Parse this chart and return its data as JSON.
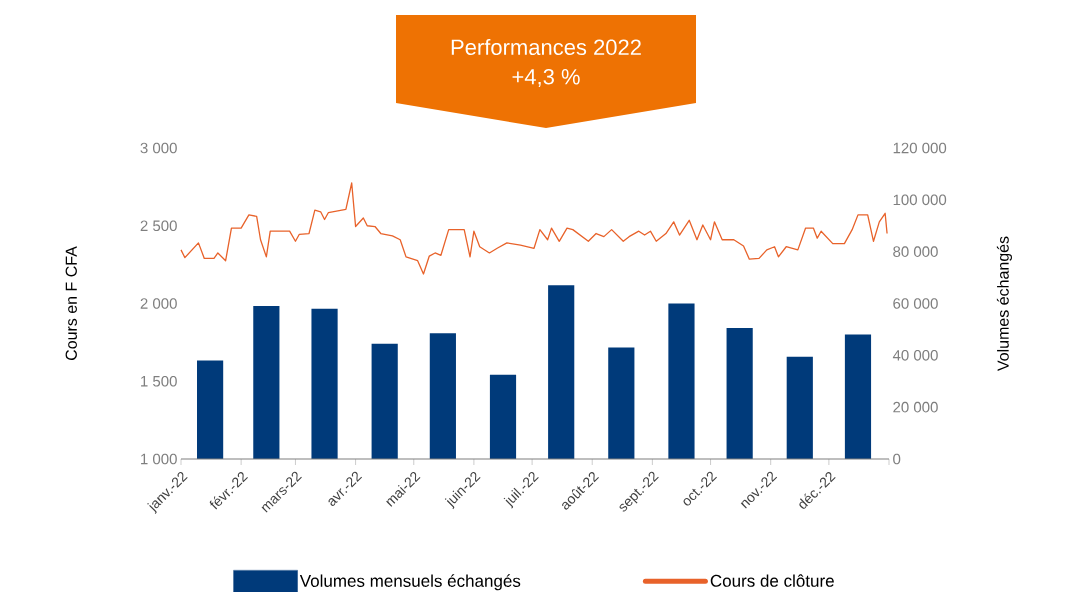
{
  "chart_data": {
    "type": "bar",
    "title": "Performances 2022",
    "subtitle": "+4,3 %",
    "ylabel": "Cours en F CFA",
    "y2label": "Volumes échangés",
    "legend": "bottom",
    "xlim": [
      "2022-01-01",
      "2023-01-01"
    ],
    "xticks": [
      {
        "value": "2022-01-01",
        "label": "janv.-22"
      },
      {
        "value": "2022-02-01",
        "label": "févr.-22"
      },
      {
        "value": "2022-03-01",
        "label": "mars-22"
      },
      {
        "value": "2022-04-01",
        "label": "avr.-22"
      },
      {
        "value": "2022-05-01",
        "label": "mai-22"
      },
      {
        "value": "2022-06-01",
        "label": "juin-22"
      },
      {
        "value": "2022-07-01",
        "label": "juil.-22"
      },
      {
        "value": "2022-08-01",
        "label": "août-22"
      },
      {
        "value": "2022-09-01",
        "label": "sept.-22"
      },
      {
        "value": "2022-10-01",
        "label": "oct.-22"
      },
      {
        "value": "2022-11-01",
        "label": "nov.-22"
      },
      {
        "value": "2022-12-01",
        "label": "déc.-22"
      },
      {
        "value": "2023-01-01",
        "label": null
      }
    ],
    "ylim": [
      1000,
      3000
    ],
    "yticks": [
      {
        "value": 1000,
        "label": "1 000"
      },
      {
        "value": 1500,
        "label": "1 500"
      },
      {
        "value": 2000,
        "label": "2 000"
      },
      {
        "value": 2500,
        "label": "2 500"
      },
      {
        "value": 3000,
        "label": "3 000"
      }
    ],
    "y2lim": [
      0,
      120000
    ],
    "y2ticks": [
      0,
      {
        "value": 20000,
        "label": "20 000"
      },
      {
        "value": 40000,
        "label": "40 000"
      },
      {
        "value": 60000,
        "label": "60 000"
      },
      {
        "value": 80000,
        "label": "80 000"
      },
      {
        "value": 100000,
        "label": "100 000"
      },
      {
        "value": 120000,
        "label": "120 000"
      }
    ],
    "series": [
      {
        "name": "Volumes mensuels échangés",
        "axis": "y2",
        "color": "#003a7a",
        "x": [
          "2022-01-16",
          "2022-02-14",
          "2022-03-16",
          "2022-04-16",
          "2022-05-16",
          "2022-06-16",
          "2022-07-16",
          "2022-08-16",
          "2022-09-16",
          "2022-10-16",
          "2022-11-16",
          "2022-12-16"
        ],
        "values": [
          38000,
          59000,
          58000,
          44500,
          48500,
          32500,
          67000,
          43000,
          60000,
          50500,
          39500,
          48000
        ]
      },
      {
        "name": "Cours  de clôture",
        "type": "line",
        "axis": "y",
        "color": "#e8622a",
        "x": [
          "2022-01-01",
          "2022-01-03",
          "2022-01-10",
          "2022-01-13",
          "2022-01-18",
          "2022-01-20",
          "2022-01-24",
          "2022-01-27",
          "2022-02-01",
          "2022-02-05",
          "2022-02-09",
          "2022-02-11",
          "2022-02-14",
          "2022-02-16",
          "2022-02-26",
          "2022-03-01",
          "2022-03-03",
          "2022-03-08",
          "2022-03-11",
          "2022-03-14",
          "2022-03-16",
          "2022-03-18",
          "2022-03-27",
          "2022-03-30",
          "2022-04-01",
          "2022-04-05",
          "2022-04-07",
          "2022-04-11",
          "2022-04-14",
          "2022-04-20",
          "2022-04-24",
          "2022-04-27",
          "2022-05-03",
          "2022-05-06",
          "2022-05-09",
          "2022-05-12",
          "2022-05-15",
          "2022-05-19",
          "2022-05-27",
          "2022-05-30",
          "2022-06-01",
          "2022-06-04",
          "2022-06-09",
          "2022-06-13",
          "2022-06-18",
          "2022-06-25",
          "2022-07-02",
          "2022-07-05",
          "2022-07-09",
          "2022-07-11",
          "2022-07-15",
          "2022-07-19",
          "2022-07-22",
          "2022-07-30",
          "2022-08-03",
          "2022-08-07",
          "2022-08-11",
          "2022-08-17",
          "2022-08-20",
          "2022-08-25",
          "2022-08-28",
          "2022-08-31",
          "2022-09-03",
          "2022-09-08",
          "2022-09-12",
          "2022-09-15",
          "2022-09-20",
          "2022-09-24",
          "2022-09-27",
          "2022-10-01",
          "2022-10-03",
          "2022-10-07",
          "2022-10-13",
          "2022-10-18",
          "2022-10-21",
          "2022-10-26",
          "2022-10-30",
          "2022-11-03",
          "2022-11-05",
          "2022-11-09",
          "2022-11-15",
          "2022-11-19",
          "2022-11-23",
          "2022-11-25",
          "2022-11-27",
          "2022-12-03",
          "2022-12-09",
          "2022-12-13",
          "2022-12-16",
          "2022-12-21",
          "2022-12-24",
          "2022-12-27",
          "2022-12-30",
          "2022-12-31"
        ],
        "values": [
          2345,
          2295,
          2390,
          2290,
          2290,
          2325,
          2275,
          2485,
          2485,
          2570,
          2560,
          2410,
          2300,
          2465,
          2465,
          2400,
          2445,
          2450,
          2600,
          2590,
          2540,
          2585,
          2605,
          2775,
          2495,
          2550,
          2500,
          2495,
          2450,
          2435,
          2410,
          2300,
          2275,
          2190,
          2305,
          2325,
          2310,
          2475,
          2475,
          2300,
          2465,
          2365,
          2325,
          2355,
          2390,
          2375,
          2355,
          2475,
          2410,
          2485,
          2400,
          2485,
          2475,
          2400,
          2450,
          2430,
          2475,
          2400,
          2430,
          2465,
          2440,
          2465,
          2400,
          2450,
          2525,
          2440,
          2535,
          2410,
          2505,
          2410,
          2525,
          2410,
          2410,
          2370,
          2285,
          2290,
          2345,
          2365,
          2300,
          2365,
          2345,
          2485,
          2485,
          2420,
          2465,
          2385,
          2385,
          2475,
          2570,
          2570,
          2400,
          2525,
          2580,
          2450
        ]
      }
    ]
  }
}
